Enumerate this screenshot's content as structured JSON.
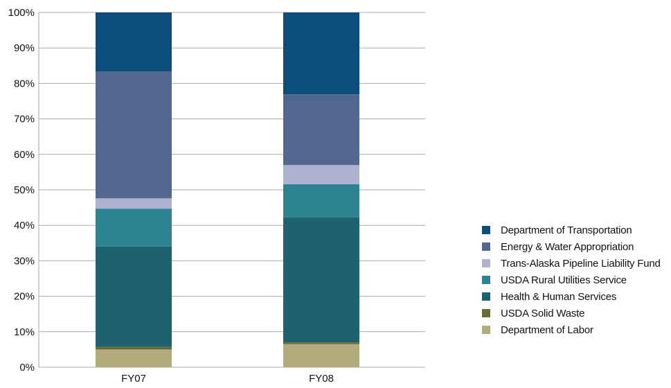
{
  "chart_data": {
    "type": "bar",
    "stacked": true,
    "categories": [
      "FY07",
      "FY08"
    ],
    "ylim": [
      0,
      100
    ],
    "yticks": [
      "0%",
      "10%",
      "20%",
      "30%",
      "40%",
      "50%",
      "60%",
      "70%",
      "80%",
      "90%",
      "100%"
    ],
    "grid": true,
    "legend_position": "right",
    "series": [
      {
        "name": "Department of Labor",
        "color": "#b2ab7c",
        "values": [
          5,
          6.5
        ]
      },
      {
        "name": "USDA Solid Waste",
        "color": "#6e6a36",
        "values": [
          0.7,
          0.5
        ]
      },
      {
        "name": "Health & Human Services",
        "color": "#1e6270",
        "values": [
          28.3,
          35.2
        ]
      },
      {
        "name": "USDA Rural Utilities Service",
        "color": "#2e8393",
        "values": [
          10.7,
          9.4
        ]
      },
      {
        "name": "Trans-Alaska Pipeline Liability Fund",
        "color": "#afb3cf",
        "values": [
          2.9,
          5.4
        ]
      },
      {
        "name": "Energy & Water Appropriation",
        "color": "#53688f",
        "values": [
          35.8,
          19.9
        ]
      },
      {
        "name": "Department of Transportation",
        "color": "#0d4d7c",
        "values": [
          16.6,
          23.1
        ]
      }
    ]
  }
}
